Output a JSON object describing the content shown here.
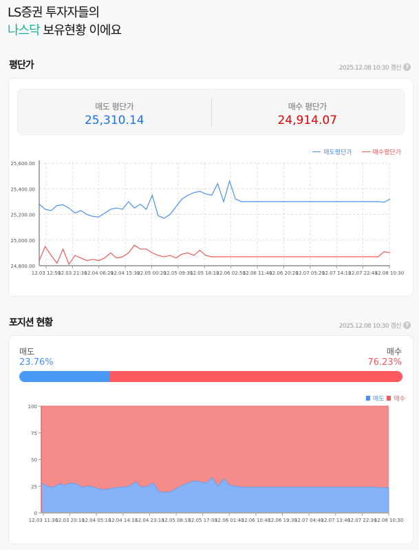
{
  "header": {
    "line1": "LS증권 투자자들의",
    "accent": "나스닥",
    "line2_rest": " 보유현황 이에요"
  },
  "colors": {
    "sell": "#4a90f0",
    "buy": "#f15a5a",
    "accent": "#19b394"
  },
  "avg_section": {
    "title": "평단가",
    "updated": "2025.12.08 10:30 갱신",
    "help_icon": "question-circle-icon",
    "sell_label": "매도 평단가",
    "sell_value": "25,310.14",
    "buy_label": "매수 평단가",
    "buy_value": "24,914.07"
  },
  "position_section": {
    "title": "포지션 현황",
    "updated": "2025.12.08 10:30 갱신",
    "help_icon": "question-circle-icon",
    "sell_label": "매도",
    "sell_pct": "23.76%",
    "sell_fraction": 23.76,
    "buy_label": "매수",
    "buy_pct": "76.23%",
    "buy_fraction": 76.23
  },
  "chart_data": [
    {
      "type": "line",
      "legend": [
        "매도평단가",
        "매수평단가"
      ],
      "legend_placement": "top-right",
      "ylim": [
        24800,
        25600
      ],
      "yticks": [
        "25,600.00",
        "25,400.00",
        "25,200.00",
        "25,000.00",
        "24,800.00"
      ],
      "ytick_values": [
        25600,
        25400,
        25200,
        25000,
        24800
      ],
      "grid": true,
      "xticks": [
        "12.03 12:50",
        "12.03 21:30",
        "12.04 06:20",
        "12.04 15:30",
        "12.05 00:20",
        "12.05 09:30",
        "12.05 18:10",
        "12.06 02:50",
        "12.06 11:40",
        "12.06 20:20",
        "12.07 05:20",
        "12.07 14:10",
        "12.07 22:40",
        "12.08 10:30"
      ],
      "series": [
        {
          "name": "매도평단가",
          "values": [
            25280,
            25240,
            25230,
            25270,
            25275,
            25250,
            25210,
            25230,
            25200,
            25185,
            25180,
            25210,
            25240,
            25250,
            25240,
            25300,
            25250,
            25280,
            25240,
            25350,
            25190,
            25170,
            25200,
            25260,
            25320,
            25350,
            25370,
            25380,
            25360,
            25350,
            25440,
            25300,
            25460,
            25320,
            25300,
            25300,
            25300,
            25300,
            25300,
            25300,
            25300,
            25300,
            25300,
            25300,
            25300,
            25300,
            25300,
            25300,
            25300,
            25300,
            25300,
            25300,
            25300,
            25300,
            25300,
            25300,
            25300,
            25300,
            25295,
            25320
          ]
        },
        {
          "name": "매수평단가",
          "values": [
            24840,
            24950,
            24880,
            24820,
            24930,
            24810,
            24880,
            24860,
            24840,
            24850,
            24840,
            24860,
            24900,
            24860,
            24870,
            24900,
            24960,
            24930,
            24930,
            24900,
            24880,
            24870,
            24880,
            24860,
            24890,
            24900,
            24880,
            24920,
            24880,
            24870,
            24870,
            24870,
            24870,
            24870,
            24870,
            24870,
            24870,
            24870,
            24870,
            24870,
            24870,
            24870,
            24870,
            24870,
            24870,
            24870,
            24870,
            24870,
            24870,
            24870,
            24870,
            24870,
            24870,
            24870,
            24870,
            24870,
            24870,
            24870,
            24910,
            24900
          ]
        }
      ]
    },
    {
      "type": "area",
      "stacked": true,
      "legend": [
        "매도",
        "매수"
      ],
      "legend_placement": "top-right",
      "ylim": [
        0,
        100
      ],
      "yticks": [
        "100",
        "75",
        "50",
        "25",
        "0"
      ],
      "ytick_values": [
        100,
        75,
        50,
        25,
        0
      ],
      "xticks": [
        "12.03 11:30",
        "12.03 20:10",
        "12.04 05:10",
        "12.04 14:10",
        "12.04 23:10",
        "12.05 08:10",
        "12.05 17:00",
        "12.06 01:40",
        "12.06 10:40",
        "12.06 19:30",
        "12.07 04:40",
        "12.07 13:40",
        "12.07 22:30",
        "12.08 10:30"
      ],
      "series": [
        {
          "name": "매도",
          "values": [
            28,
            25,
            24,
            27,
            26,
            28,
            27,
            24,
            25,
            24,
            22,
            22,
            23,
            24,
            24,
            25,
            29,
            24,
            25,
            28,
            20,
            19,
            20,
            23,
            26,
            28,
            30,
            29,
            28,
            33,
            25,
            32,
            26,
            25,
            24,
            24,
            24,
            24,
            24,
            24,
            24,
            24,
            24,
            24,
            24,
            24,
            24,
            24,
            24,
            24,
            24,
            24,
            24,
            24,
            24,
            24,
            24,
            24,
            23.5,
            23.76
          ]
        },
        {
          "name": "매수",
          "values": "remainder to 100"
        }
      ]
    }
  ]
}
